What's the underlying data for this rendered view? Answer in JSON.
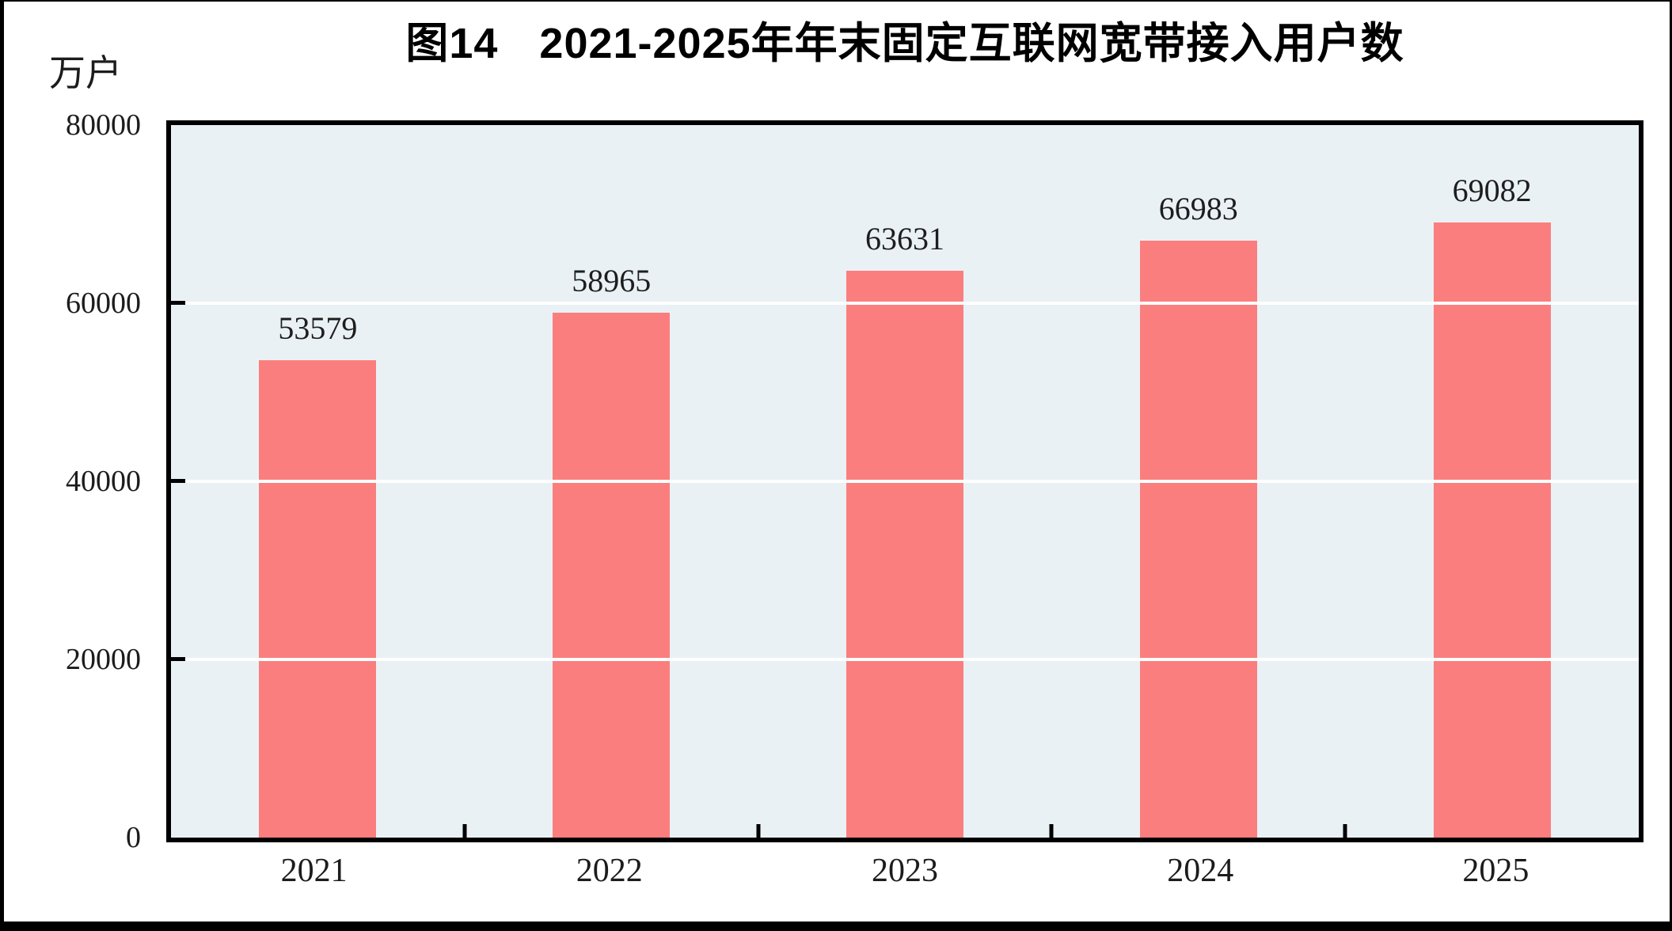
{
  "figure": {
    "title_prefix": "图14",
    "title_main": "2021-2025年年末固定互联网宽带接入用户数",
    "unit_label": "万户"
  },
  "chart_data": {
    "type": "bar",
    "title": "图14　2021-2025年年末固定互联网宽带接入用户数",
    "categories": [
      "2021",
      "2022",
      "2023",
      "2024",
      "2025"
    ],
    "values": [
      53579,
      58965,
      63631,
      66983,
      69082
    ],
    "xlabel": "",
    "ylabel": "万户",
    "ylim": [
      0,
      80000
    ],
    "yticks": [
      0,
      20000,
      40000,
      60000,
      80000
    ],
    "grid": "horizontal-white",
    "legend": "none",
    "value_labels": true,
    "colors": {
      "bar": "#FB7E7E",
      "plot_background": "#EAF1F5",
      "gridline": "#FFFFFF",
      "axis_border": "#000000",
      "text": "#1C1C1C"
    }
  }
}
